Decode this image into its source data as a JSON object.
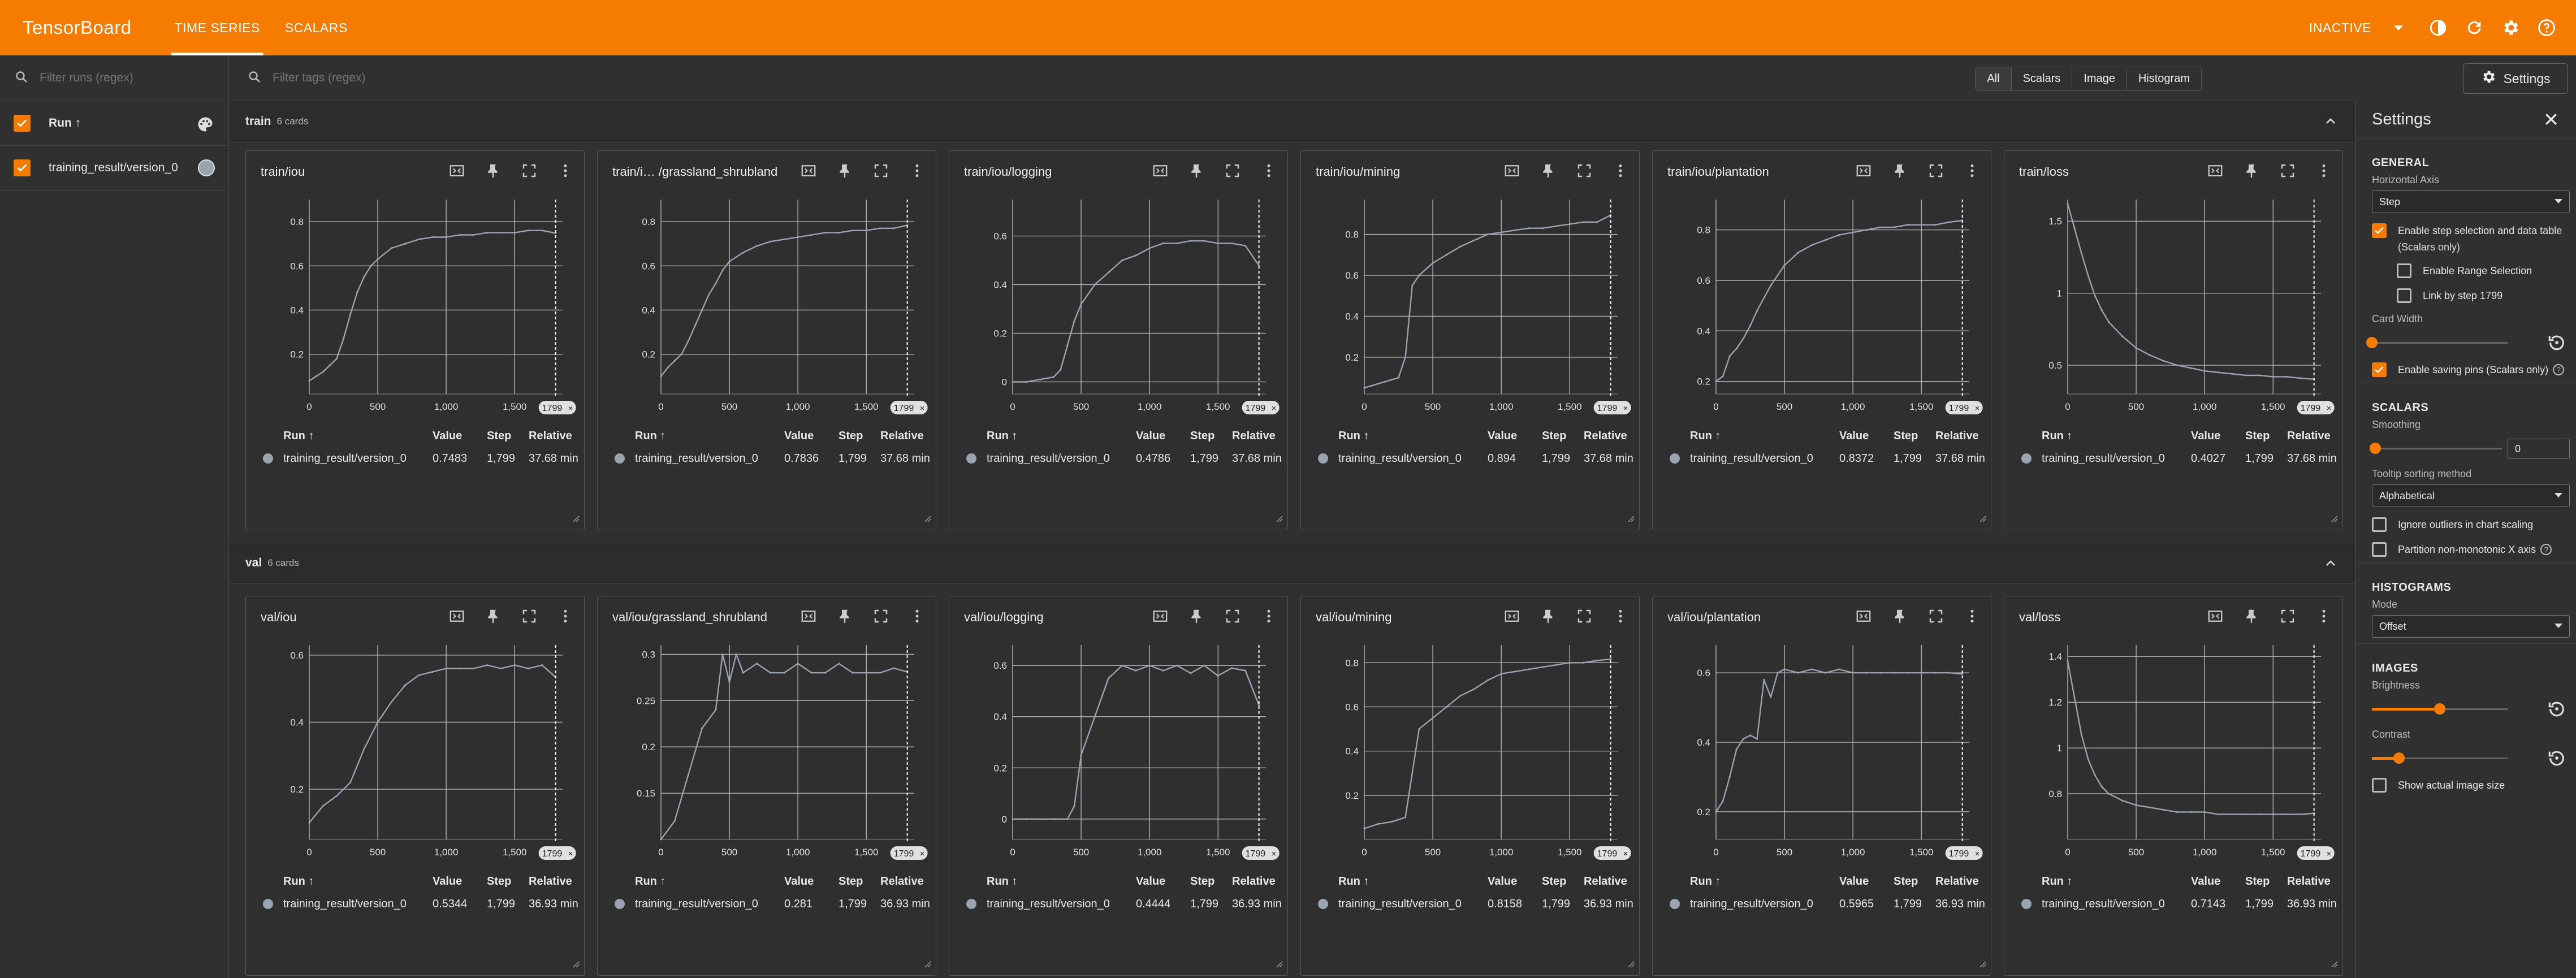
{
  "header": {
    "brand": "TensorBoard",
    "tabs": [
      "TIME SERIES",
      "SCALARS"
    ],
    "status": "INACTIVE",
    "icons": [
      "dark-mode-icon",
      "refresh-icon",
      "settings-icon",
      "help-icon"
    ],
    "accent": "#f57c00"
  },
  "sidebar": {
    "filter_placeholder": "Filter runs (regex)",
    "header_label": "Run ↑",
    "runs": [
      {
        "name": "training_result/version_0",
        "checked": true,
        "color": "#9aa3b0"
      }
    ]
  },
  "main": {
    "filter_placeholder": "Filter tags (regex)",
    "type_filters": [
      "All",
      "Scalars",
      "Image",
      "Histogram"
    ],
    "settings_button": "Settings"
  },
  "table_headers": [
    "Run ↑",
    "Value",
    "Step",
    "Relative"
  ],
  "step_marker": "1799",
  "groups": [
    {
      "name": "train",
      "count": "6 cards",
      "cards": [
        {
          "title": "train/iou",
          "run": "training_result/version_0",
          "value": "0.7483",
          "step": "1,799",
          "relative": "37.68 min"
        },
        {
          "title": "train/i… /grassland_shrubland",
          "run": "training_result/version_0",
          "value": "0.7836",
          "step": "1,799",
          "relative": "37.68 min"
        },
        {
          "title": "train/iou/logging",
          "run": "training_result/version_0",
          "value": "0.4786",
          "step": "1,799",
          "relative": "37.68 min"
        },
        {
          "title": "train/iou/mining",
          "run": "training_result/version_0",
          "value": "0.894",
          "step": "1,799",
          "relative": "37.68 min"
        },
        {
          "title": "train/iou/plantation",
          "run": "training_result/version_0",
          "value": "0.8372",
          "step": "1,799",
          "relative": "37.68 min"
        },
        {
          "title": "train/loss",
          "run": "training_result/version_0",
          "value": "0.4027",
          "step": "1,799",
          "relative": "37.68 min"
        }
      ]
    },
    {
      "name": "val",
      "count": "6 cards",
      "cards": [
        {
          "title": "val/iou",
          "run": "training_result/version_0",
          "value": "0.5344",
          "step": "1,799",
          "relative": "36.93 min"
        },
        {
          "title": "val/iou/grassland_shrubland",
          "run": "training_result/version_0",
          "value": "0.281",
          "step": "1,799",
          "relative": "36.93 min"
        },
        {
          "title": "val/iou/logging",
          "run": "training_result/version_0",
          "value": "0.4444",
          "step": "1,799",
          "relative": "36.93 min"
        },
        {
          "title": "val/iou/mining",
          "run": "training_result/version_0",
          "value": "0.8158",
          "step": "1,799",
          "relative": "36.93 min"
        },
        {
          "title": "val/iou/plantation",
          "run": "training_result/version_0",
          "value": "0.5965",
          "step": "1,799",
          "relative": "36.93 min"
        },
        {
          "title": "val/loss",
          "run": "training_result/version_0",
          "value": "0.7143",
          "step": "1,799",
          "relative": "36.93 min"
        }
      ]
    }
  ],
  "chart_data": [
    {
      "type": "line",
      "title": "train/iou",
      "x": [
        0,
        50,
        100,
        150,
        200,
        250,
        300,
        350,
        400,
        450,
        500,
        600,
        700,
        800,
        900,
        1000,
        1100,
        1200,
        1300,
        1400,
        1500,
        1600,
        1700,
        1799
      ],
      "y": [
        0.08,
        0.1,
        0.12,
        0.15,
        0.18,
        0.27,
        0.38,
        0.48,
        0.55,
        0.6,
        0.63,
        0.68,
        0.7,
        0.72,
        0.73,
        0.73,
        0.74,
        0.74,
        0.75,
        0.75,
        0.75,
        0.76,
        0.76,
        0.7483
      ],
      "xticks": [
        0,
        500,
        1000,
        1500
      ],
      "xticklabels": [
        "0",
        "500",
        "1,000",
        "1,500"
      ],
      "yticks": [
        0.2,
        0.4,
        0.6,
        0.8
      ],
      "ylim": [
        0.02,
        0.9
      ],
      "xlim": [
        0,
        1850
      ]
    },
    {
      "type": "line",
      "title": "train/i… /grassland_shrubland",
      "x": [
        0,
        50,
        100,
        150,
        200,
        250,
        300,
        350,
        400,
        450,
        500,
        600,
        700,
        800,
        900,
        1000,
        1100,
        1200,
        1300,
        1400,
        1500,
        1600,
        1700,
        1799
      ],
      "y": [
        0.1,
        0.14,
        0.17,
        0.2,
        0.26,
        0.33,
        0.4,
        0.47,
        0.52,
        0.58,
        0.62,
        0.66,
        0.69,
        0.71,
        0.72,
        0.73,
        0.74,
        0.75,
        0.75,
        0.76,
        0.76,
        0.77,
        0.77,
        0.7836
      ],
      "xticks": [
        0,
        500,
        1000,
        1500
      ],
      "xticklabels": [
        "0",
        "500",
        "1,000",
        "1,500"
      ],
      "yticks": [
        0.2,
        0.4,
        0.6,
        0.8
      ],
      "ylim": [
        0.02,
        0.9
      ],
      "xlim": [
        0,
        1850
      ]
    },
    {
      "type": "line",
      "title": "train/iou/logging",
      "x": [
        0,
        100,
        200,
        300,
        350,
        400,
        450,
        500,
        600,
        700,
        800,
        900,
        1000,
        1100,
        1200,
        1300,
        1400,
        1500,
        1600,
        1700,
        1799
      ],
      "y": [
        0.0,
        0.0,
        0.01,
        0.02,
        0.05,
        0.15,
        0.25,
        0.32,
        0.4,
        0.45,
        0.5,
        0.52,
        0.55,
        0.57,
        0.57,
        0.58,
        0.58,
        0.57,
        0.57,
        0.56,
        0.4786
      ],
      "xticks": [
        0,
        500,
        1000,
        1500
      ],
      "xticklabels": [
        "0",
        "500",
        "1,000",
        "1,500"
      ],
      "yticks": [
        0,
        0.2,
        0.4,
        0.6
      ],
      "ylim": [
        -0.05,
        0.75
      ],
      "xlim": [
        0,
        1850
      ]
    },
    {
      "type": "line",
      "title": "train/iou/mining",
      "x": [
        0,
        50,
        100,
        150,
        200,
        250,
        300,
        350,
        400,
        500,
        600,
        700,
        800,
        900,
        1000,
        1100,
        1200,
        1300,
        1400,
        1500,
        1600,
        1700,
        1799
      ],
      "y": [
        0.05,
        0.06,
        0.07,
        0.08,
        0.09,
        0.1,
        0.2,
        0.55,
        0.6,
        0.66,
        0.7,
        0.74,
        0.77,
        0.8,
        0.81,
        0.82,
        0.83,
        0.83,
        0.84,
        0.85,
        0.86,
        0.86,
        0.894
      ],
      "xticks": [
        0,
        500,
        1000,
        1500
      ],
      "xticklabels": [
        "0",
        "500",
        "1,000",
        "1,500"
      ],
      "yticks": [
        0.2,
        0.4,
        0.6,
        0.8
      ],
      "ylim": [
        0.02,
        0.97
      ],
      "xlim": [
        0,
        1850
      ]
    },
    {
      "type": "line",
      "title": "train/iou/plantation",
      "x": [
        0,
        50,
        100,
        150,
        200,
        250,
        300,
        400,
        500,
        600,
        700,
        800,
        900,
        1000,
        1100,
        1200,
        1300,
        1400,
        1500,
        1600,
        1700,
        1799
      ],
      "y": [
        0.2,
        0.22,
        0.3,
        0.33,
        0.37,
        0.42,
        0.48,
        0.58,
        0.66,
        0.71,
        0.74,
        0.76,
        0.78,
        0.79,
        0.8,
        0.81,
        0.81,
        0.82,
        0.82,
        0.82,
        0.83,
        0.8372
      ],
      "xticks": [
        0,
        500,
        1000,
        1500
      ],
      "xticklabels": [
        "0",
        "500",
        "1,000",
        "1,500"
      ],
      "yticks": [
        0.2,
        0.4,
        0.6,
        0.8
      ],
      "ylim": [
        0.15,
        0.92
      ],
      "xlim": [
        0,
        1850
      ]
    },
    {
      "type": "line",
      "title": "train/loss",
      "x": [
        0,
        50,
        100,
        150,
        200,
        250,
        300,
        400,
        500,
        600,
        700,
        800,
        900,
        1000,
        1100,
        1200,
        1300,
        1400,
        1500,
        1600,
        1700,
        1799
      ],
      "y": [
        1.62,
        1.45,
        1.28,
        1.12,
        0.98,
        0.88,
        0.8,
        0.7,
        0.62,
        0.57,
        0.53,
        0.5,
        0.48,
        0.46,
        0.45,
        0.44,
        0.43,
        0.43,
        0.42,
        0.42,
        0.41,
        0.4027
      ],
      "xticks": [
        0,
        500,
        1000,
        1500
      ],
      "xticklabels": [
        "0",
        "500",
        "1,000",
        "1,500"
      ],
      "yticks": [
        0.5,
        1,
        1.5
      ],
      "ylim": [
        0.3,
        1.65
      ],
      "xlim": [
        0,
        1850
      ]
    },
    {
      "type": "line",
      "title": "val/iou",
      "x": [
        0,
        100,
        200,
        300,
        400,
        500,
        600,
        700,
        800,
        900,
        1000,
        1100,
        1200,
        1300,
        1400,
        1500,
        1600,
        1700,
        1799
      ],
      "y": [
        0.1,
        0.15,
        0.18,
        0.22,
        0.32,
        0.4,
        0.46,
        0.51,
        0.54,
        0.55,
        0.56,
        0.56,
        0.56,
        0.57,
        0.56,
        0.57,
        0.56,
        0.57,
        0.5344
      ],
      "xticks": [
        0,
        500,
        1000,
        1500
      ],
      "xticklabels": [
        "0",
        "500",
        "1,000",
        "1,500"
      ],
      "yticks": [
        0.2,
        0.4,
        0.6
      ],
      "ylim": [
        0.05,
        0.63
      ],
      "xlim": [
        0,
        1850
      ]
    },
    {
      "type": "line",
      "title": "val/iou/grassland_shrubland",
      "x": [
        0,
        100,
        200,
        300,
        400,
        450,
        500,
        550,
        600,
        700,
        800,
        900,
        1000,
        1100,
        1200,
        1300,
        1400,
        1500,
        1600,
        1700,
        1799
      ],
      "y": [
        0.1,
        0.12,
        0.17,
        0.22,
        0.24,
        0.3,
        0.27,
        0.3,
        0.28,
        0.29,
        0.28,
        0.28,
        0.29,
        0.28,
        0.28,
        0.29,
        0.28,
        0.28,
        0.28,
        0.285,
        0.281
      ],
      "xticks": [
        0,
        500,
        1000,
        1500
      ],
      "xticklabels": [
        "0",
        "500",
        "1,000",
        "1,500"
      ],
      "yticks": [
        0.15,
        0.2,
        0.25,
        0.3
      ],
      "ylim": [
        0.1,
        0.31
      ],
      "xlim": [
        0,
        1850
      ]
    },
    {
      "type": "line",
      "title": "val/iou/logging",
      "x": [
        0,
        100,
        200,
        300,
        400,
        450,
        500,
        600,
        700,
        800,
        900,
        1000,
        1100,
        1200,
        1300,
        1400,
        1500,
        1600,
        1700,
        1799
      ],
      "y": [
        0.0,
        0.0,
        0.0,
        0.0,
        0.0,
        0.05,
        0.25,
        0.4,
        0.55,
        0.6,
        0.58,
        0.6,
        0.58,
        0.6,
        0.57,
        0.6,
        0.56,
        0.59,
        0.58,
        0.4444
      ],
      "xticks": [
        0,
        500,
        1000,
        1500
      ],
      "xticklabels": [
        "0",
        "500",
        "1,000",
        "1,500"
      ],
      "yticks": [
        0,
        0.2,
        0.4,
        0.6
      ],
      "ylim": [
        -0.08,
        0.68
      ],
      "xlim": [
        0,
        1850
      ]
    },
    {
      "type": "line",
      "title": "val/iou/mining",
      "x": [
        0,
        100,
        200,
        300,
        400,
        500,
        600,
        700,
        800,
        900,
        1000,
        1100,
        1200,
        1300,
        1400,
        1500,
        1600,
        1700,
        1799
      ],
      "y": [
        0.05,
        0.07,
        0.08,
        0.1,
        0.5,
        0.55,
        0.6,
        0.65,
        0.68,
        0.72,
        0.75,
        0.76,
        0.77,
        0.78,
        0.79,
        0.8,
        0.8,
        0.81,
        0.8158
      ],
      "xticks": [
        0,
        500,
        1000,
        1500
      ],
      "xticklabels": [
        "0",
        "500",
        "1,000",
        "1,500"
      ],
      "yticks": [
        0.2,
        0.4,
        0.6,
        0.8
      ],
      "ylim": [
        0.0,
        0.88
      ],
      "xlim": [
        0,
        1850
      ]
    },
    {
      "type": "line",
      "title": "val/iou/plantation",
      "x": [
        0,
        50,
        100,
        150,
        200,
        250,
        300,
        350,
        400,
        450,
        500,
        600,
        700,
        800,
        900,
        1000,
        1100,
        1200,
        1300,
        1400,
        1500,
        1600,
        1700,
        1799
      ],
      "y": [
        0.2,
        0.23,
        0.3,
        0.38,
        0.41,
        0.42,
        0.41,
        0.58,
        0.53,
        0.6,
        0.61,
        0.6,
        0.61,
        0.6,
        0.61,
        0.6,
        0.6,
        0.6,
        0.6,
        0.6,
        0.6,
        0.6,
        0.6,
        0.5965
      ],
      "xticks": [
        0,
        500,
        1000,
        1500
      ],
      "xticklabels": [
        "0",
        "500",
        "1,000",
        "1,500"
      ],
      "yticks": [
        0.2,
        0.4,
        0.6
      ],
      "ylim": [
        0.12,
        0.68
      ],
      "xlim": [
        0,
        1850
      ]
    },
    {
      "type": "line",
      "title": "val/loss",
      "x": [
        0,
        50,
        100,
        150,
        200,
        250,
        300,
        400,
        500,
        600,
        700,
        800,
        900,
        1000,
        1100,
        1200,
        1300,
        1400,
        1500,
        1600,
        1700,
        1799
      ],
      "y": [
        1.38,
        1.22,
        1.06,
        0.95,
        0.88,
        0.83,
        0.8,
        0.77,
        0.75,
        0.74,
        0.73,
        0.72,
        0.72,
        0.72,
        0.71,
        0.71,
        0.71,
        0.71,
        0.71,
        0.71,
        0.71,
        0.7143
      ],
      "xticks": [
        0,
        500,
        1000,
        1500
      ],
      "xticklabels": [
        "0",
        "500",
        "1,000",
        "1,500"
      ],
      "yticks": [
        0.8,
        1,
        1.2,
        1.4
      ],
      "ylim": [
        0.6,
        1.45
      ],
      "xlim": [
        0,
        1850
      ]
    }
  ],
  "settings_panel": {
    "title": "Settings",
    "general": {
      "title": "GENERAL",
      "horizontal_axis_label": "Horizontal Axis",
      "horizontal_axis_value": "Step",
      "enable_step_selection": "Enable step selection and data table",
      "scalars_only": "(Scalars only)",
      "enable_range": "Enable Range Selection",
      "link_by_step": "Link by step 1799",
      "card_width_label": "Card Width",
      "card_width_level": 0.0,
      "enable_saving_pins": "Enable saving pins (Scalars only)"
    },
    "scalars": {
      "title": "SCALARS",
      "smoothing_label": "Smoothing",
      "smoothing_value": "0",
      "tooltip_label": "Tooltip sorting method",
      "tooltip_value": "Alphabetical",
      "ignore_outliers": "Ignore outliers in chart scaling",
      "partition": "Partition non-monotonic X axis"
    },
    "histograms": {
      "title": "HISTOGRAMS",
      "mode_label": "Mode",
      "mode_value": "Offset"
    },
    "images": {
      "title": "IMAGES",
      "brightness_label": "Brightness",
      "brightness_level": 0.5,
      "contrast_label": "Contrast",
      "contrast_level": 0.2,
      "show_actual": "Show actual image size"
    }
  }
}
